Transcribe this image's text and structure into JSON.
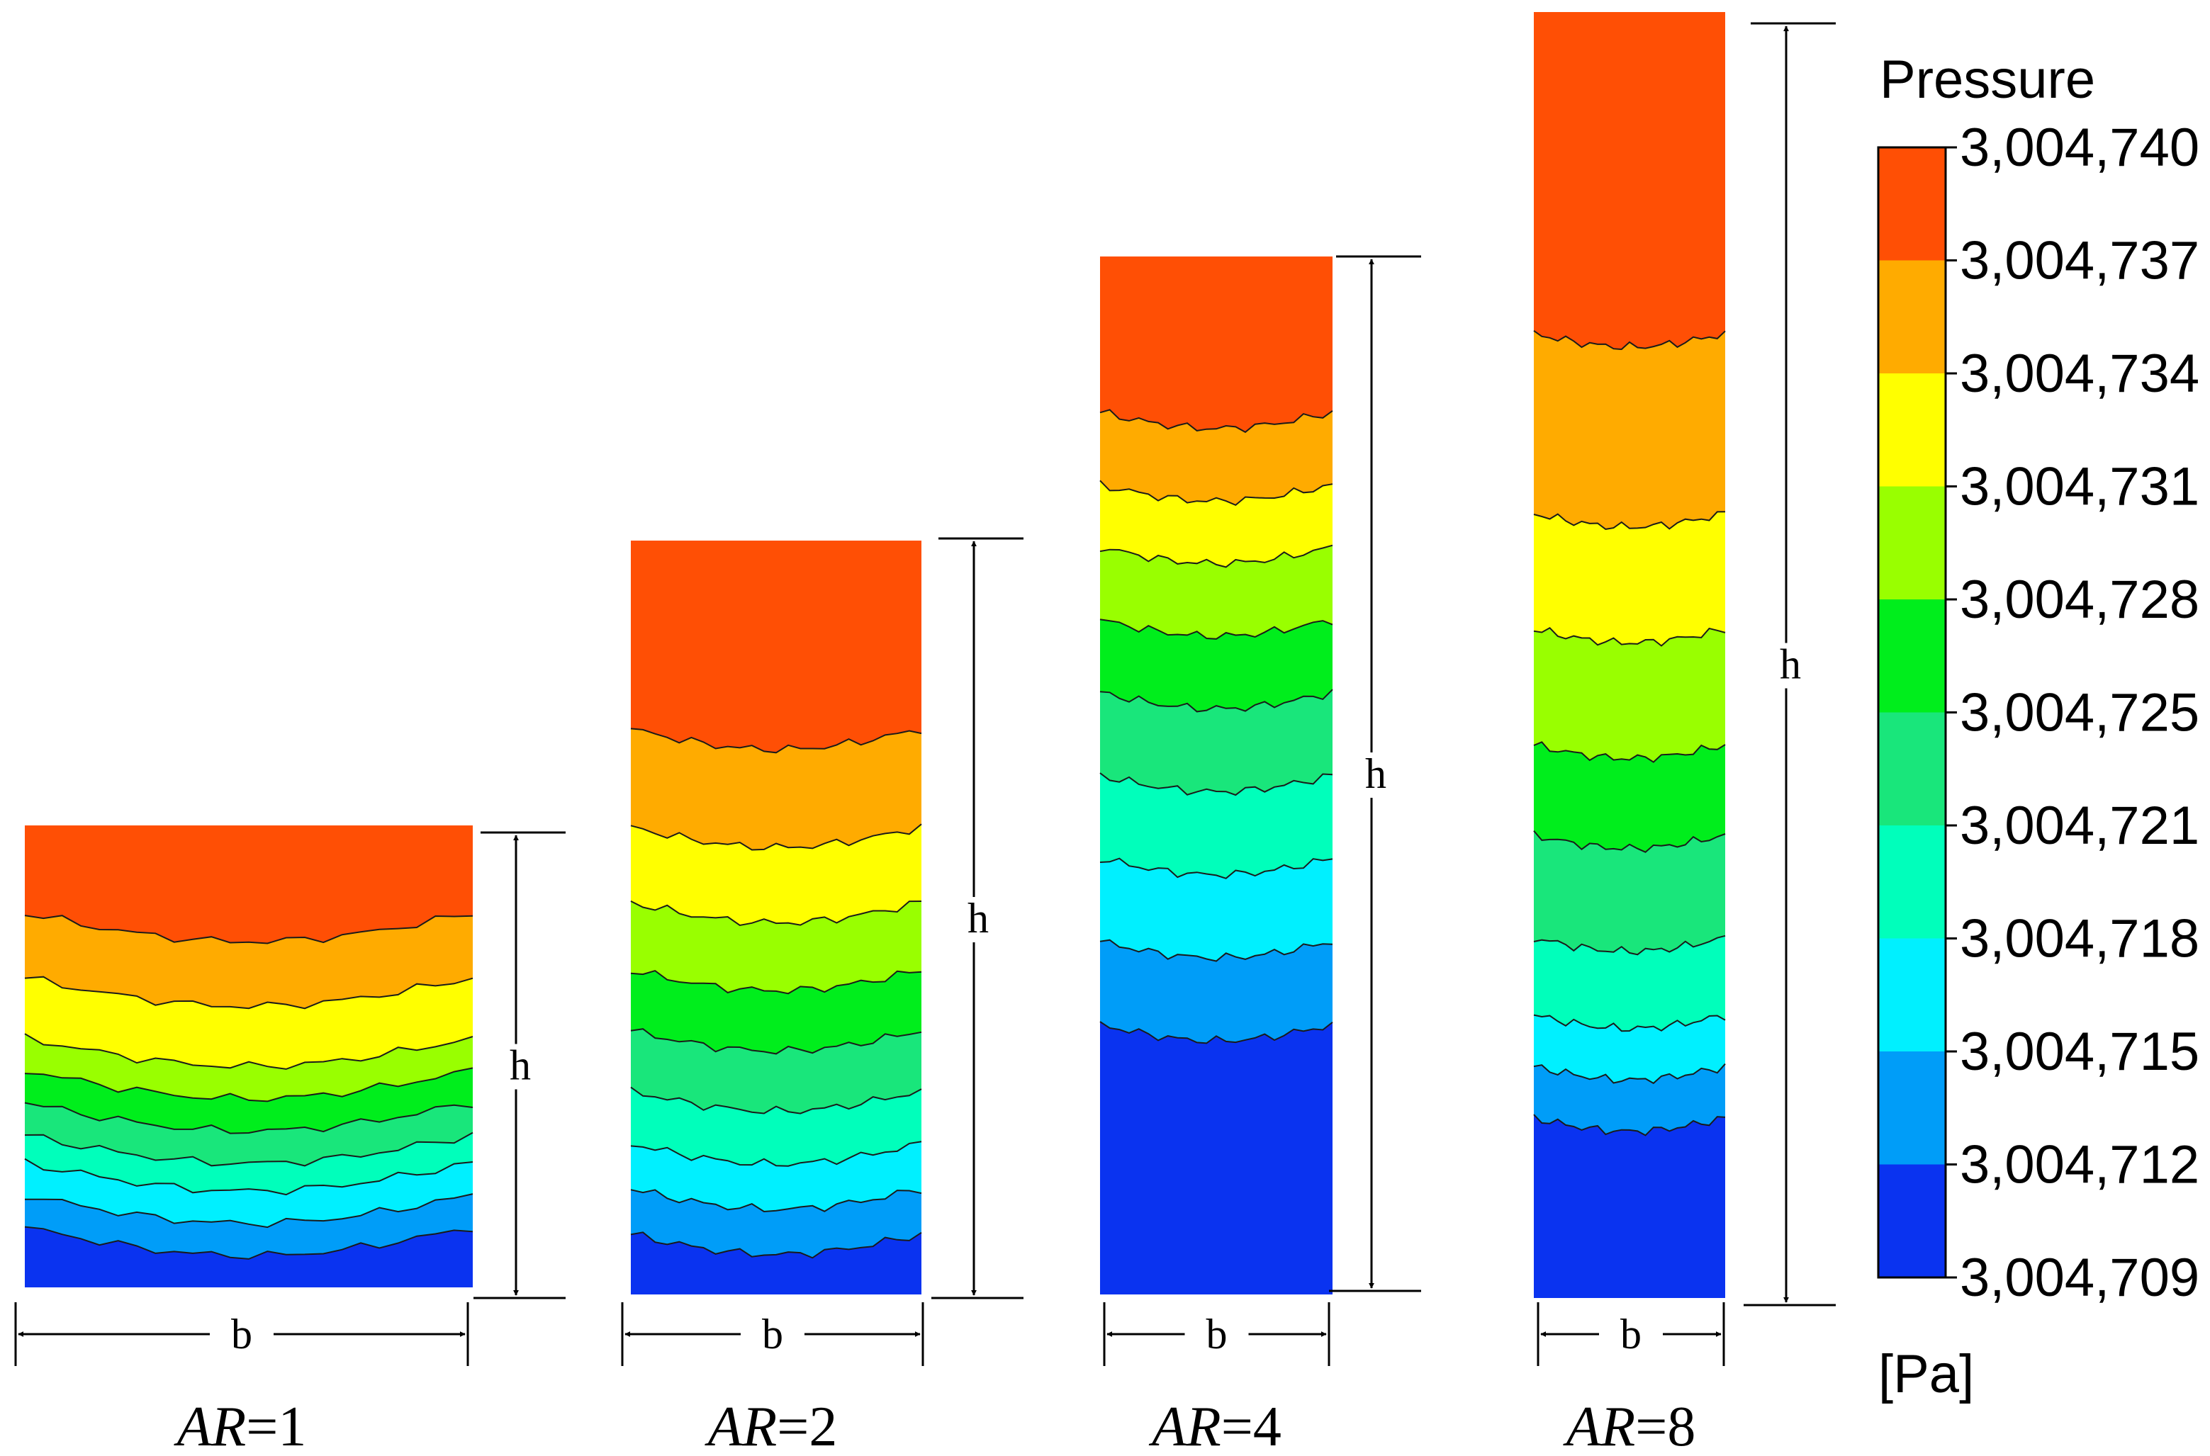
{
  "legend": {
    "title": "Pressure",
    "unit": "[Pa]",
    "ticks": [
      "3,004,740",
      "3,004,737",
      "3,004,734",
      "3,004,731",
      "3,004,728",
      "3,004,725",
      "3,004,721",
      "3,004,718",
      "3,004,715",
      "3,004,712",
      "3,004,709"
    ],
    "colors": [
      "#ff4f05",
      "#ffab00",
      "#ffff00",
      "#99ff00",
      "#00ee1c",
      "#19e67b",
      "#00ffbb",
      "#00f0ff",
      "#009df8",
      "#0a33f0"
    ]
  },
  "panels": [
    {
      "ar_label": "AR",
      "ar_value": "=1",
      "aspect_ratio": 1,
      "height_label": "h",
      "width_label": "b"
    },
    {
      "ar_label": "AR",
      "ar_value": "=2",
      "aspect_ratio": 2,
      "height_label": "h",
      "width_label": "b"
    },
    {
      "ar_label": "AR",
      "ar_value": "=4",
      "aspect_ratio": 4,
      "height_label": "h",
      "width_label": "b"
    },
    {
      "ar_label": "AR",
      "ar_value": "=8",
      "aspect_ratio": 8,
      "height_label": "h",
      "width_label": "b"
    }
  ]
}
